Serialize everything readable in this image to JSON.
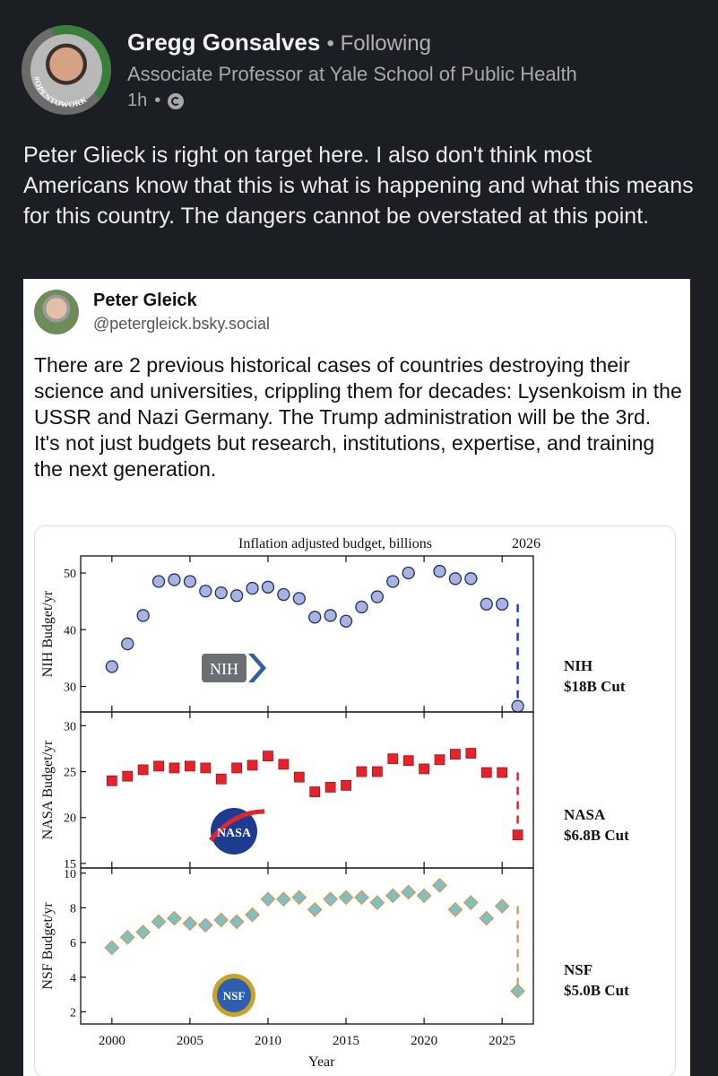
{
  "post": {
    "author": "Gregg Gonsalves",
    "follow_status": "Following",
    "headline": "Associate Professor at Yale School of Public Health",
    "time": "1h",
    "badge": "#OPENTOWORK",
    "body": "Peter Glieck is right on target here. I also don't think most Americans know that this is what is happening and what this means for this country. The dangers cannot be overstated at this point."
  },
  "embed": {
    "author": "Peter Gleick",
    "handle": "@petergleick.bsky.social",
    "body_line1": "There are 2 previous historical cases of countries destroying their science and universities, crippling them for decades: Lysenkoism in the USSR and Nazi Germany. The Trump administration will be the 3rd.",
    "body_line2": "It's not just budgets but research, institutions, expertise, and training the next generation."
  },
  "chart_data": {
    "type": "scatter",
    "title": "Inflation adjusted budget, billions",
    "year_label": "2026",
    "xlabel": "Year",
    "xlim": [
      1998,
      2027
    ],
    "xticks": [
      2000,
      2005,
      2010,
      2015,
      2020,
      2025
    ],
    "panels": [
      {
        "name": "NIH",
        "ylabel": "NIH Budget/yr",
        "ylim": [
          25.5,
          53
        ],
        "yticks": [
          30,
          40,
          50
        ],
        "logo": "NIH",
        "cut_label_name": "NIH",
        "cut_label_amount": "$18B Cut",
        "marker": "circle",
        "color": "#a9b4dc",
        "x": [
          2000,
          2001,
          2002,
          2003,
          2004,
          2005,
          2006,
          2007,
          2008,
          2009,
          2010,
          2011,
          2012,
          2013,
          2014,
          2015,
          2016,
          2017,
          2018,
          2019,
          2021,
          2022,
          2023,
          2024,
          2025
        ],
        "y": [
          33.5,
          37.5,
          42.5,
          48.5,
          48.8,
          48.5,
          46.8,
          46.5,
          46,
          47.3,
          47.5,
          46.2,
          45.5,
          42.2,
          42.5,
          41.5,
          44,
          45.8,
          48.5,
          50,
          50.3,
          49,
          49,
          44.5,
          44.5
        ],
        "proposed": {
          "x": 2026,
          "y": 26.5
        }
      },
      {
        "name": "NASA",
        "ylabel": "NASA Budget/yr",
        "ylim": [
          14.5,
          31.5
        ],
        "yticks": [
          15,
          20,
          25,
          30
        ],
        "logo": "NASA",
        "cut_label_name": "NASA",
        "cut_label_amount": "$6.8B Cut",
        "marker": "square",
        "color": "#e3242b",
        "x": [
          2000,
          2001,
          2002,
          2003,
          2004,
          2005,
          2006,
          2007,
          2008,
          2009,
          2010,
          2011,
          2012,
          2013,
          2014,
          2015,
          2016,
          2017,
          2018,
          2019,
          2020,
          2021,
          2022,
          2023,
          2024,
          2025
        ],
        "y": [
          24,
          24.5,
          25.2,
          25.6,
          25.4,
          25.6,
          25.4,
          24.2,
          25.4,
          25.7,
          26.7,
          25.8,
          24.4,
          22.8,
          23.3,
          23.5,
          25,
          25,
          26.4,
          26.2,
          25.3,
          26.3,
          26.9,
          27,
          24.9,
          24.9
        ],
        "proposed": {
          "x": 2026,
          "y": 18.1
        }
      },
      {
        "name": "NSF",
        "ylabel": "NSF Budget/yr",
        "ylim": [
          1.3,
          10.3
        ],
        "yticks": [
          2,
          4,
          6,
          8,
          10
        ],
        "logo": "NSF",
        "cut_label_name": "NSF",
        "cut_label_amount": "$5.0B Cut",
        "marker": "diamond",
        "color": "#7fbfc5",
        "x": [
          2000,
          2001,
          2002,
          2003,
          2004,
          2005,
          2006,
          2007,
          2008,
          2009,
          2010,
          2011,
          2012,
          2013,
          2014,
          2015,
          2016,
          2017,
          2018,
          2019,
          2020,
          2021,
          2022,
          2023,
          2024,
          2025
        ],
        "y": [
          5.7,
          6.3,
          6.6,
          7.2,
          7.4,
          7.1,
          7,
          7.3,
          7.2,
          7.6,
          8.5,
          8.5,
          8.6,
          7.9,
          8.5,
          8.6,
          8.6,
          8.3,
          8.7,
          8.9,
          8.7,
          9.3,
          7.9,
          8.3,
          7.4,
          8.1
        ],
        "proposed": {
          "x": 2026,
          "y": 3.2
        }
      }
    ]
  }
}
